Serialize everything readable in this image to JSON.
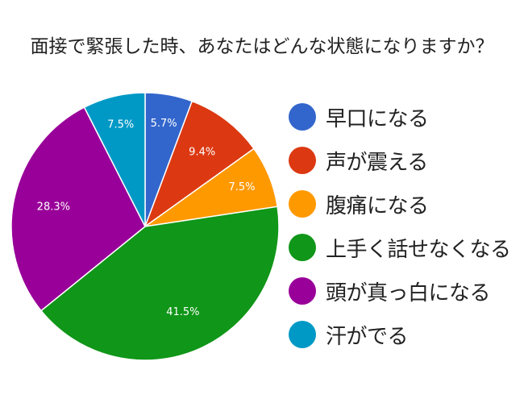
{
  "chart_data": {
    "type": "pie",
    "title": "面接で緊張した時、あなたはどんな状態になりますか？",
    "categories": [
      "早口になる",
      "声が震える",
      "腹痛になる",
      "上手く話せなくなる",
      "頭が真っ白になる",
      "汗がでる"
    ],
    "values": [
      5.7,
      9.4,
      7.5,
      41.5,
      28.3,
      7.5
    ],
    "data_labels": [
      "5.7%",
      "9.4%",
      "7.5%",
      "41.5%",
      "28.3%",
      "7.5%"
    ],
    "colors": [
      "#3366cc",
      "#dc3912",
      "#ff9900",
      "#109618",
      "#990099",
      "#0099c6"
    ],
    "legend_position": "right",
    "slice_order": "clockwise-from-top"
  }
}
